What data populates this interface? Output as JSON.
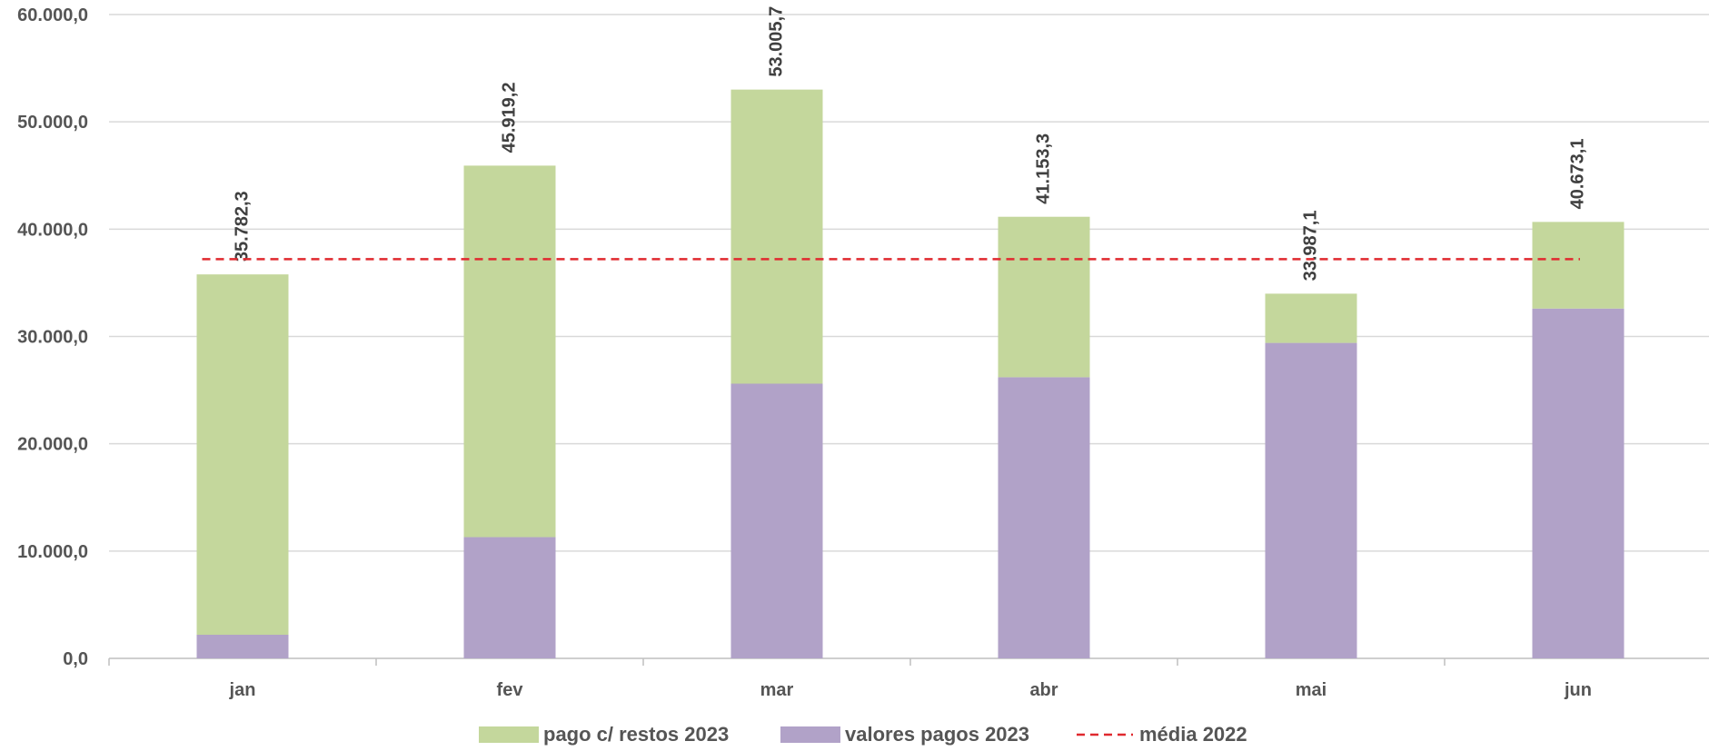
{
  "chart_data": {
    "type": "bar",
    "stacked": true,
    "categories": [
      "jan",
      "fev",
      "mar",
      "abr",
      "mai",
      "jun"
    ],
    "series": [
      {
        "name": "valores pagos 2023",
        "color": "#b1a2c8",
        "values": [
          2200,
          11300,
          25600,
          26200,
          29400,
          32600
        ]
      },
      {
        "name": "pago c/ restos 2023",
        "color": "#c4d79c",
        "values": [
          33582.3,
          34619.2,
          27405.7,
          14953.3,
          4587.1,
          8073.1
        ]
      }
    ],
    "totals": [
      35782.3,
      45919.2,
      53005.7,
      41153.3,
      33987.1,
      40673.1
    ],
    "total_labels": [
      "35.782,3",
      "45.919,2",
      "53.005,7",
      "41.153,3",
      "33.987,1",
      "40.673,1"
    ],
    "reference_line": {
      "name": "média 2022",
      "value": 37200,
      "color": "#e0292f",
      "style": "dashed"
    },
    "y_ticks": [
      {
        "value": 0,
        "label": "0,0"
      },
      {
        "value": 10000,
        "label": "10.000,0"
      },
      {
        "value": 20000,
        "label": "20.000,0"
      },
      {
        "value": 30000,
        "label": "30.000,0"
      },
      {
        "value": 40000,
        "label": "40.000,0"
      },
      {
        "value": 50000,
        "label": "50.000,0"
      },
      {
        "value": 60000,
        "label": "60.000,0"
      }
    ],
    "ylim": [
      0,
      60000
    ],
    "grid": true,
    "legend": {
      "position": "bottom",
      "entries": [
        {
          "label": "pago c/ restos 2023",
          "kind": "swatch",
          "color": "#c4d79c"
        },
        {
          "label": "valores pagos 2023",
          "kind": "swatch",
          "color": "#b1a2c8"
        },
        {
          "label": "média 2022",
          "kind": "dashed-line",
          "color": "#e0292f"
        }
      ]
    },
    "colors": {
      "grid": "#d9d9d9",
      "axis": "#bfbfbf"
    }
  }
}
